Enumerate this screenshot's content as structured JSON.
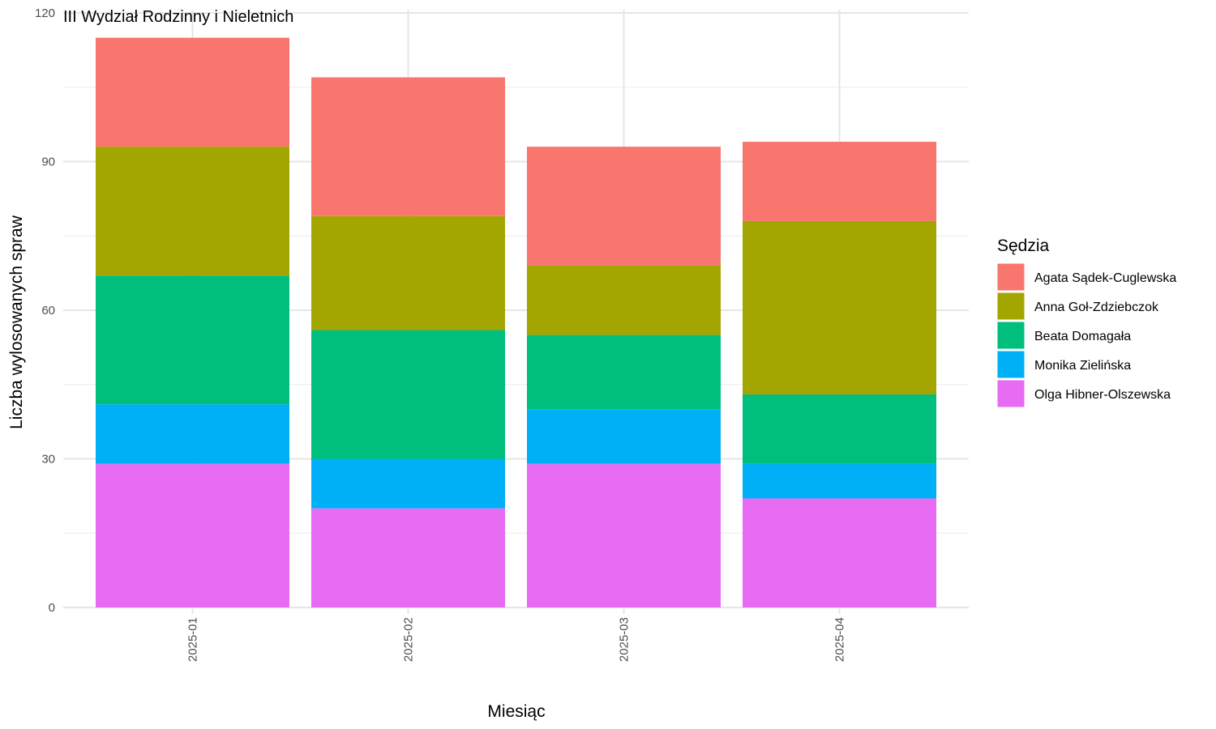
{
  "chart_data": {
    "type": "bar",
    "stacked": true,
    "title": "III Wydział Rodzinny i Nieletnich",
    "xlabel": "Miesiąc",
    "ylabel": "Liczba wylosowanych spraw",
    "ylim": [
      0,
      120
    ],
    "yticks": [
      0,
      30,
      60,
      90,
      120
    ],
    "grid": true,
    "legend_title": "Sędzia",
    "legend_position": "right",
    "categories": [
      "2025-01",
      "2025-02",
      "2025-03",
      "2025-04"
    ],
    "series": [
      {
        "name": "Olga Hibner-Olszewska",
        "color": "#E76BF3",
        "values": [
          29,
          20,
          29,
          22
        ]
      },
      {
        "name": "Monika Zielińska",
        "color": "#00B0F6",
        "values": [
          12,
          10,
          11,
          7
        ]
      },
      {
        "name": "Beata Domagała",
        "color": "#00BF7D",
        "values": [
          26,
          26,
          15,
          14
        ]
      },
      {
        "name": "Anna Goł-Zdziebczok",
        "color": "#A3A500",
        "values": [
          26,
          23,
          14,
          35
        ]
      },
      {
        "name": "Agata Sądek-Cuglewska",
        "color": "#F8766D",
        "values": [
          22,
          28,
          24,
          16
        ]
      }
    ],
    "legend_order": [
      "Agata Sądek-Cuglewska",
      "Anna Goł-Zdziebczok",
      "Beata Domagała",
      "Monika Zielińska",
      "Olga Hibner-Olszewska"
    ]
  }
}
